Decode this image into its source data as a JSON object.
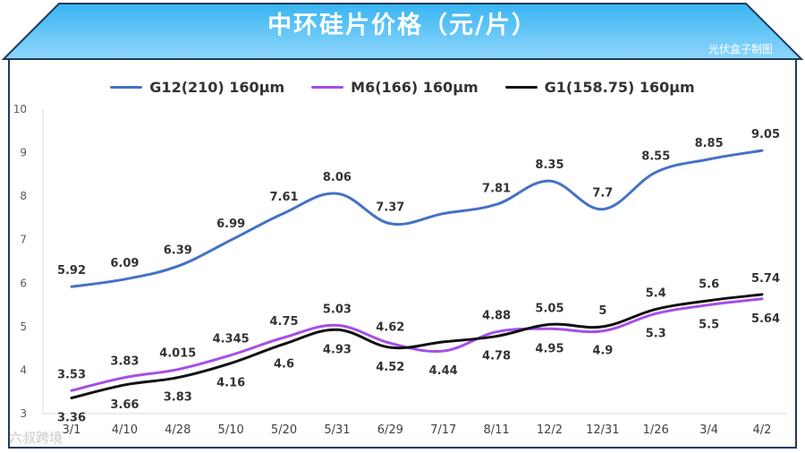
{
  "chart_data": {
    "type": "line",
    "title": "中环硅片价格（元/片）",
    "credit": "光伏盒子制图",
    "categories": [
      "3/1",
      "4/10",
      "4/28",
      "5/10",
      "5/20",
      "5/31",
      "6/29",
      "7/17",
      "8/11",
      "12/2",
      "12/31",
      "1/26",
      "3/4",
      "4/2"
    ],
    "yticks": [
      "3",
      "4",
      "5",
      "6",
      "7",
      "8",
      "9",
      "10"
    ],
    "ylim": [
      3,
      10
    ],
    "grid": false,
    "legend_position": "top-center",
    "series": [
      {
        "name": "G12(210) 160μm",
        "color": "#4472c4",
        "values": [
          5.92,
          6.09,
          6.39,
          6.99,
          7.61,
          8.06,
          7.37,
          7.6,
          7.81,
          8.35,
          7.7,
          8.55,
          8.85,
          9.05
        ],
        "labels": [
          "5.92",
          "6.09",
          "6.39",
          "6.99",
          "7.61",
          "8.06",
          "7.37",
          "",
          "7.81",
          "8.35",
          "7.7",
          "8.55",
          "8.85",
          "9.05"
        ]
      },
      {
        "name": "M6(166) 160μm",
        "color": "#a64ee8",
        "values": [
          3.53,
          3.83,
          4.015,
          4.345,
          4.75,
          5.03,
          4.62,
          4.44,
          4.88,
          4.95,
          4.9,
          5.3,
          5.5,
          5.64
        ],
        "labels": [
          "3.53",
          "3.83",
          "4.015",
          "4.345",
          "4.75",
          "5.03",
          "4.62",
          "4.44",
          "4.88",
          "4.95",
          "4.9",
          "5.3",
          "5.5",
          "5.64"
        ]
      },
      {
        "name": "G1(158.75) 160μm",
        "color": "#111111",
        "values": [
          3.36,
          3.66,
          3.83,
          4.16,
          4.6,
          4.93,
          4.52,
          4.65,
          4.78,
          5.05,
          5.0,
          5.4,
          5.6,
          5.74
        ],
        "labels": [
          "3.36",
          "3.66",
          "3.83",
          "4.16",
          "4.6",
          "4.93",
          "4.52",
          "",
          "4.78",
          "5.05",
          "5",
          "5.4",
          "5.6",
          "5.74"
        ]
      }
    ]
  },
  "watermark": "六叔跨境"
}
